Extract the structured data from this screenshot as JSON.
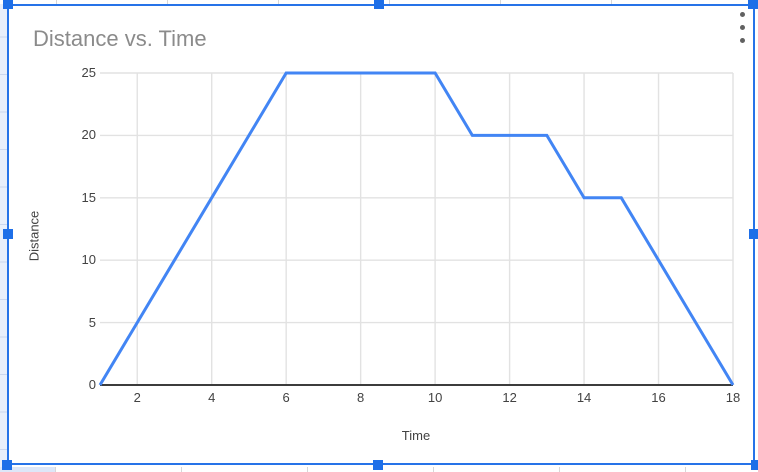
{
  "chart_data": {
    "type": "line",
    "title": "Distance vs. Time",
    "xlabel": "Time",
    "ylabel": "Distance",
    "x": [
      1,
      2,
      3,
      4,
      5,
      6,
      7,
      8,
      9,
      10,
      11,
      12,
      13,
      14,
      15,
      16,
      17,
      18
    ],
    "y": [
      0,
      5,
      10,
      15,
      20,
      25,
      25,
      25,
      25,
      25,
      20,
      20,
      20,
      15,
      15,
      10,
      5,
      0
    ],
    "series": [
      {
        "name": "Distance",
        "values": [
          0,
          5,
          10,
          15,
          20,
          25,
          25,
          25,
          25,
          25,
          20,
          20,
          20,
          15,
          15,
          10,
          5,
          0
        ]
      }
    ],
    "xlim": [
      1,
      18
    ],
    "ylim": [
      0,
      25
    ],
    "x_ticks": [
      2,
      4,
      6,
      8,
      10,
      12,
      14,
      16,
      18
    ],
    "y_ticks": [
      0,
      5,
      10,
      15,
      20,
      25
    ],
    "grid": true,
    "legend": "none",
    "line_color": "#4285f4"
  },
  "chart_ui": {
    "kebab_icon": "vertical-three-dot-options-menu",
    "selected": true
  },
  "colors": {
    "series_line": "#4285f4",
    "selection_blue": "#1e6fe8",
    "title_text": "#8b8b8b",
    "axis_text": "#424242",
    "gridline": "#e2e2e2",
    "axis_line": "#3c3c3c",
    "sheet_fill": "#e9effb",
    "dot_icon": "#616161"
  }
}
